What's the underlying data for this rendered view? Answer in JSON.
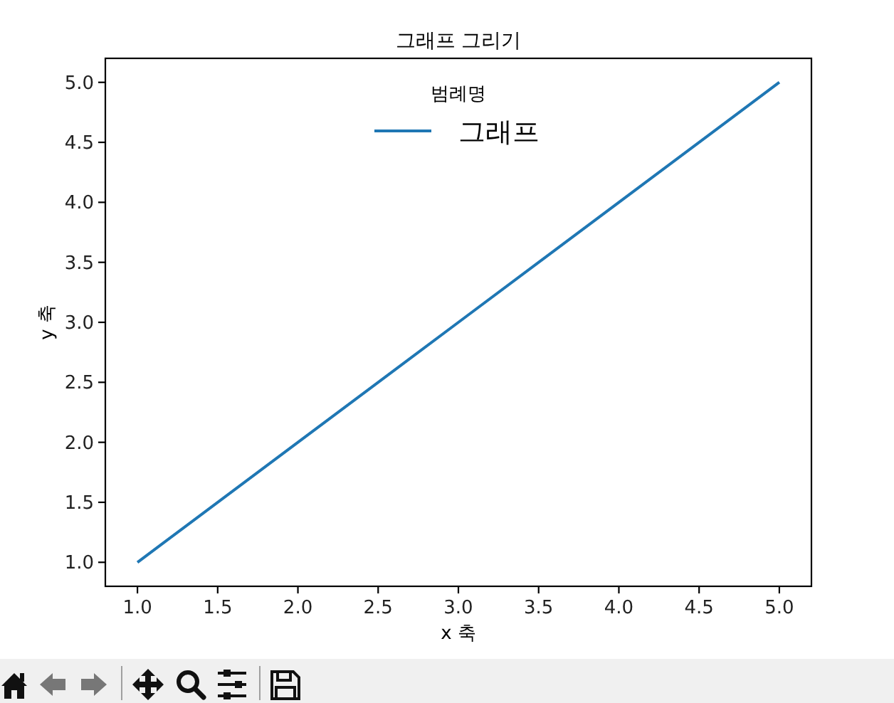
{
  "chart_data": {
    "type": "line",
    "title": "그래프 그리기",
    "xlabel": "x 축",
    "ylabel": "y 축",
    "legend_title": "범례명",
    "legend": "top",
    "x": [
      1,
      2,
      3,
      4,
      5
    ],
    "series": [
      {
        "name": "그래프",
        "color": "#1f77b4",
        "values": [
          1,
          2,
          3,
          4,
          5
        ]
      }
    ],
    "xlim": [
      0.8,
      5.2
    ],
    "ylim": [
      0.8,
      5.2
    ],
    "xticks": [
      {
        "value": 1,
        "label": "1.0"
      },
      1.5,
      {
        "value": 2,
        "label": "2.0"
      },
      2.5,
      {
        "value": 3,
        "label": "3.0"
      },
      3.5,
      {
        "value": 4,
        "label": "4.0"
      },
      4.5,
      {
        "value": 5,
        "label": "5.0"
      }
    ],
    "yticks": [
      {
        "value": 1,
        "label": "1.0"
      },
      1.5,
      {
        "value": 2,
        "label": "2.0"
      },
      2.5,
      {
        "value": 3,
        "label": "3.0"
      },
      3.5,
      {
        "value": 4,
        "label": "4.0"
      },
      4.5,
      {
        "value": 5,
        "label": "5.0"
      }
    ]
  }
}
